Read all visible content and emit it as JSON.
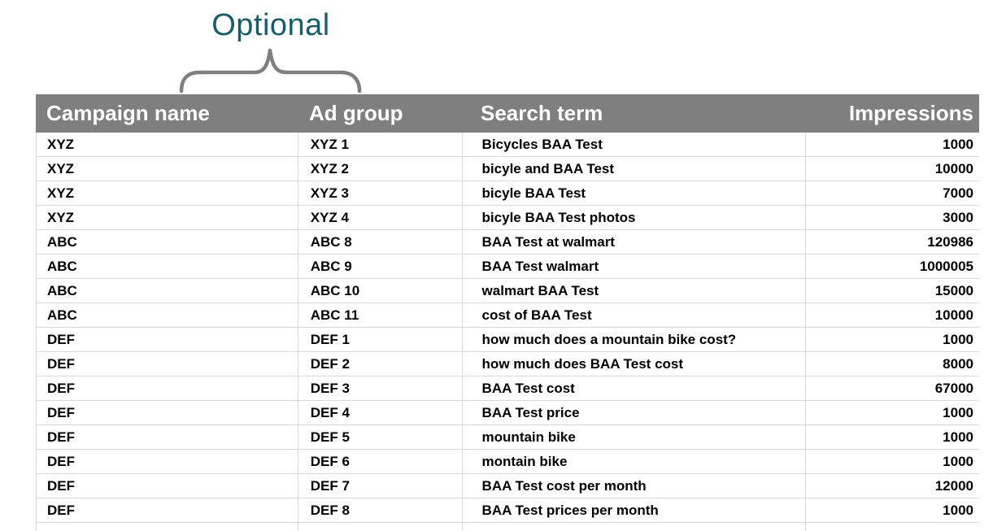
{
  "colors": {
    "header_bg": "#7F7F7F",
    "header_text": "#FFFFFF",
    "row_border": "#D9D9D9",
    "body_text": "#000000",
    "annotation_text": "#175E6A",
    "brace": "#7F7F7F",
    "background": "#FFFFFF"
  },
  "annotation": {
    "label": "Optional",
    "spans_columns": [
      "Campaign name",
      "Ad group"
    ]
  },
  "table": {
    "columns": [
      {
        "key": "campaign_name",
        "label": "Campaign name",
        "align": "left"
      },
      {
        "key": "ad_group",
        "label": "Ad group",
        "align": "left"
      },
      {
        "key": "search_term",
        "label": "Search term",
        "align": "left"
      },
      {
        "key": "impressions",
        "label": "Impressions",
        "align": "right"
      }
    ],
    "rows": [
      [
        "XYZ",
        "XYZ 1",
        "Bicycles BAA Test",
        "1000"
      ],
      [
        "XYZ",
        "XYZ 2",
        "bicyle and BAA Test",
        "10000"
      ],
      [
        "XYZ",
        "XYZ 3",
        "bicyle BAA Test",
        "7000"
      ],
      [
        "XYZ",
        "XYZ 4",
        "bicyle BAA Test photos",
        "3000"
      ],
      [
        "ABC",
        "ABC 8",
        "BAA Test at walmart",
        "120986"
      ],
      [
        "ABC",
        "ABC 9",
        "BAA Test walmart",
        "1000005"
      ],
      [
        "ABC",
        "ABC 10",
        "walmart BAA Test",
        "15000"
      ],
      [
        "ABC",
        "ABC 11",
        "cost of BAA Test",
        "10000"
      ],
      [
        "DEF",
        "DEF 1",
        "how much does a mountain bike cost?",
        "1000"
      ],
      [
        "DEF",
        "DEF 2",
        "how much does BAA Test cost",
        "8000"
      ],
      [
        "DEF",
        "DEF 3",
        "BAA Test cost",
        "67000"
      ],
      [
        "DEF",
        "DEF 4",
        "BAA Test price",
        "1000"
      ],
      [
        "DEF",
        "DEF 5",
        "mountain bike",
        "1000"
      ],
      [
        "DEF",
        "DEF 6",
        "montain bike",
        "1000"
      ],
      [
        "DEF",
        "DEF 7",
        "BAA Test cost per month",
        "12000"
      ],
      [
        "DEF",
        "DEF 8",
        "BAA Test prices per month",
        "1000"
      ]
    ]
  }
}
